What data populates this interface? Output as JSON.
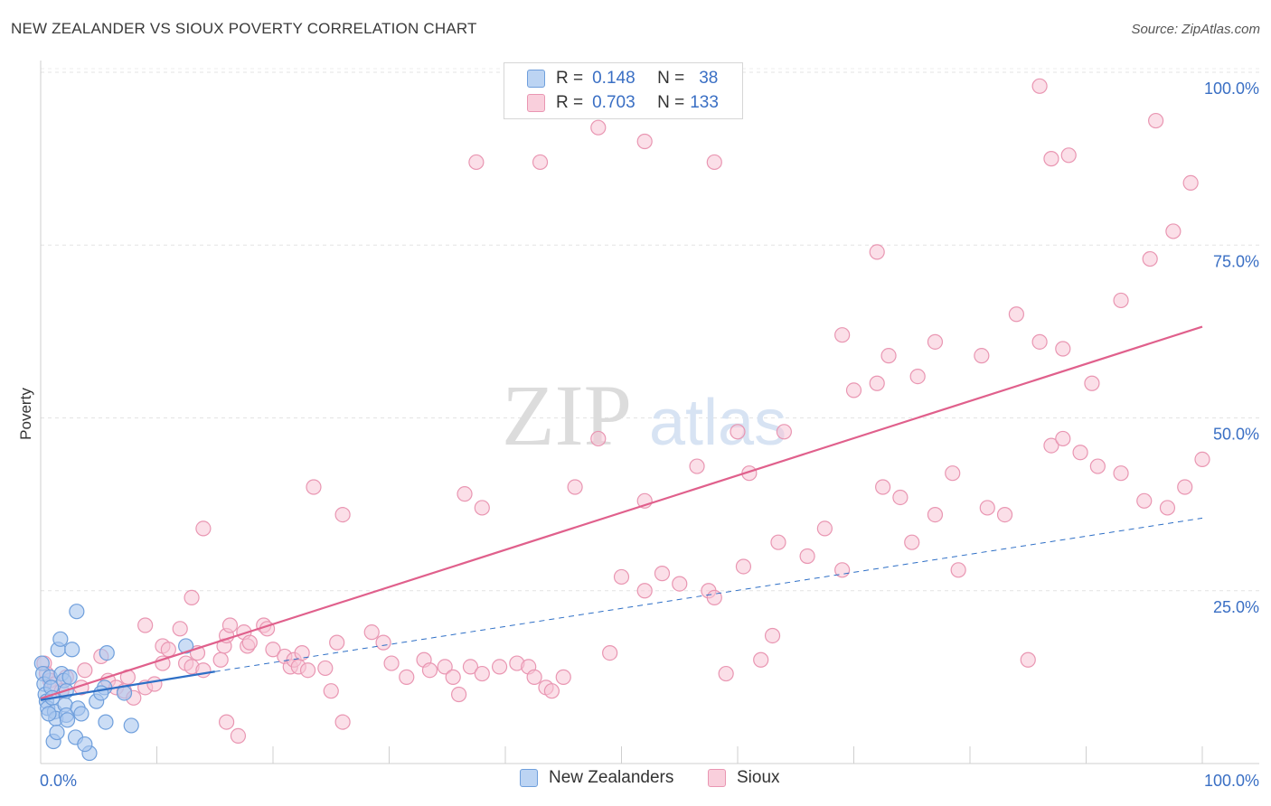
{
  "header": {
    "title": "NEW ZEALANDER VS SIOUX POVERTY CORRELATION CHART",
    "source": "Source: ZipAtlas.com"
  },
  "legend": {
    "series1": {
      "r_label": "R =",
      "r_value": "0.148",
      "n_label": "N =",
      "n_value": "38"
    },
    "series2": {
      "r_label": "R =",
      "r_value": "0.703",
      "n_label": "N =",
      "n_value": "133"
    }
  },
  "bottom_legend": {
    "series1": "New Zealanders",
    "series2": "Sioux"
  },
  "watermark": {
    "zip": "ZIP",
    "atlas": "atlas"
  },
  "colors": {
    "blue_fill": "#a9c6ee",
    "blue_stroke": "#6f9fdc",
    "blue_line": "#2e6fc6",
    "pink_fill": "#f7c5d5",
    "pink_stroke": "#e996b2",
    "pink_line": "#e0608c",
    "tick_text": "#3a6fc4",
    "grid": "#e3e3e3"
  },
  "chart_data": {
    "type": "scatter",
    "title": "NEW ZEALANDER VS SIOUX POVERTY CORRELATION CHART",
    "xlabel": "",
    "ylabel": "Poverty",
    "xlim": [
      0,
      100
    ],
    "ylim": [
      0,
      100
    ],
    "x_tick_labels": [
      "0.0%",
      "100.0%"
    ],
    "y_ticks": [
      25,
      50,
      75,
      100
    ],
    "y_tick_labels": [
      "25.0%",
      "50.0%",
      "75.0%",
      "100.0%"
    ],
    "series": [
      {
        "name": "New Zealanders",
        "R": 0.148,
        "N": 38,
        "trend": {
          "x0": 0,
          "y0": 9.2,
          "x1": 15,
          "y1": 13.3,
          "dashed_to_x": 100,
          "dashed_to_y": 35.5
        },
        "points": [
          [
            0.1,
            14.5
          ],
          [
            0.2,
            13
          ],
          [
            0.3,
            11.5
          ],
          [
            0.4,
            10
          ],
          [
            0.5,
            9
          ],
          [
            0.6,
            8
          ],
          [
            0.8,
            12.5
          ],
          [
            0.9,
            11
          ],
          [
            1,
            9.5
          ],
          [
            1.2,
            7.5
          ],
          [
            1.3,
            6.5
          ],
          [
            1.5,
            16.5
          ],
          [
            1.7,
            18
          ],
          [
            1.8,
            13
          ],
          [
            2,
            12
          ],
          [
            2.1,
            8.5
          ],
          [
            2.2,
            7
          ],
          [
            2.3,
            6.3
          ],
          [
            2.5,
            12.5
          ],
          [
            2.7,
            16.5
          ],
          [
            2.2,
            10.5
          ],
          [
            3,
            3.8
          ],
          [
            3.2,
            8
          ],
          [
            3.5,
            7.2
          ],
          [
            1.1,
            3.2
          ],
          [
            1.4,
            4.5
          ],
          [
            0.7,
            7.2
          ],
          [
            4.2,
            1.5
          ],
          [
            3.8,
            2.8
          ],
          [
            4.8,
            9
          ],
          [
            3.1,
            22
          ],
          [
            5.5,
            11
          ],
          [
            5.7,
            16
          ],
          [
            5.6,
            6
          ],
          [
            5.2,
            10.2
          ],
          [
            7.2,
            10.2
          ],
          [
            7.8,
            5.5
          ],
          [
            12.5,
            17
          ]
        ]
      },
      {
        "name": "Sioux",
        "R": 0.703,
        "N": 133,
        "trend": {
          "x0": 0,
          "y0": 9.4,
          "x1": 100,
          "y1": 63.2
        },
        "points": [
          [
            0.3,
            14.5
          ],
          [
            0.5,
            13
          ],
          [
            0.8,
            12
          ],
          [
            1.2,
            11.5
          ],
          [
            1.8,
            10.5
          ],
          [
            2.2,
            12.5
          ],
          [
            3.5,
            11
          ],
          [
            3.8,
            13.5
          ],
          [
            5.2,
            15.5
          ],
          [
            5.8,
            12
          ],
          [
            6.5,
            11
          ],
          [
            7.2,
            10.5
          ],
          [
            7.5,
            12.5
          ],
          [
            8,
            9.5
          ],
          [
            9,
            11
          ],
          [
            9.8,
            11.5
          ],
          [
            10.5,
            14.5
          ],
          [
            10.5,
            17
          ],
          [
            11,
            16.5
          ],
          [
            12.5,
            14.5
          ],
          [
            13,
            14
          ],
          [
            13.5,
            16
          ],
          [
            12,
            19.5
          ],
          [
            14,
            13.5
          ],
          [
            15.5,
            15
          ],
          [
            15.8,
            17
          ],
          [
            16,
            18.5
          ],
          [
            16.3,
            20
          ],
          [
            17.5,
            19
          ],
          [
            17.8,
            17
          ],
          [
            18,
            17.5
          ],
          [
            19.2,
            20
          ],
          [
            19.5,
            19.5
          ],
          [
            20,
            16.5
          ],
          [
            21,
            15.5
          ],
          [
            21.5,
            14
          ],
          [
            21.8,
            15
          ],
          [
            22.2,
            14
          ],
          [
            22.5,
            16
          ],
          [
            23,
            13.5
          ],
          [
            24.5,
            13.8
          ],
          [
            25.5,
            17.5
          ],
          [
            25,
            10.5
          ],
          [
            28.5,
            19
          ],
          [
            29.5,
            17.5
          ],
          [
            30.2,
            14.5
          ],
          [
            31.5,
            12.5
          ],
          [
            33,
            15
          ],
          [
            33.5,
            13.5
          ],
          [
            34.8,
            14
          ],
          [
            35.5,
            12.5
          ],
          [
            36,
            10
          ],
          [
            37,
            14
          ],
          [
            38,
            13
          ],
          [
            39.5,
            14
          ],
          [
            41,
            14.5
          ],
          [
            42,
            14
          ],
          [
            42.5,
            12.5
          ],
          [
            43.5,
            11
          ],
          [
            44,
            10.5
          ],
          [
            45,
            12.5
          ],
          [
            49,
            16
          ],
          [
            50,
            27
          ],
          [
            52,
            25
          ],
          [
            53.5,
            27.5
          ],
          [
            55,
            26
          ],
          [
            57.5,
            25
          ],
          [
            58,
            24
          ],
          [
            59,
            13
          ],
          [
            60.5,
            28.5
          ],
          [
            62,
            15
          ],
          [
            63,
            18.5
          ],
          [
            66,
            30
          ],
          [
            67.5,
            34
          ],
          [
            69,
            28
          ],
          [
            72.5,
            40
          ],
          [
            74,
            38.5
          ],
          [
            75,
            32
          ],
          [
            77,
            36
          ],
          [
            78.5,
            42
          ],
          [
            79,
            28
          ],
          [
            81.5,
            37
          ],
          [
            83,
            36
          ],
          [
            85,
            15
          ],
          [
            87,
            46
          ],
          [
            88,
            47
          ],
          [
            89.5,
            45
          ],
          [
            91,
            43
          ],
          [
            93,
            42
          ],
          [
            95,
            38
          ],
          [
            97,
            37
          ],
          [
            98.5,
            40
          ],
          [
            100,
            44
          ],
          [
            61,
            42
          ],
          [
            63.5,
            32
          ],
          [
            46,
            40
          ],
          [
            52,
            38
          ],
          [
            56.5,
            43
          ],
          [
            60,
            48
          ],
          [
            70,
            54
          ],
          [
            72,
            55
          ],
          [
            75.5,
            56
          ],
          [
            48,
            47
          ],
          [
            36.5,
            39
          ],
          [
            38,
            37
          ],
          [
            26,
            36
          ],
          [
            23.5,
            40
          ],
          [
            64,
            48
          ],
          [
            69,
            62
          ],
          [
            73,
            59
          ],
          [
            77,
            61
          ],
          [
            81,
            59
          ],
          [
            84,
            65
          ],
          [
            86,
            61
          ],
          [
            88,
            60
          ],
          [
            90.5,
            55
          ],
          [
            93,
            67
          ],
          [
            95.5,
            73
          ],
          [
            97.5,
            77
          ],
          [
            99,
            84
          ],
          [
            96,
            93
          ],
          [
            88.5,
            88
          ],
          [
            87,
            87.5
          ],
          [
            86,
            98
          ],
          [
            72,
            74
          ],
          [
            58,
            87
          ],
          [
            52,
            90
          ],
          [
            48,
            92
          ],
          [
            37.5,
            87
          ],
          [
            43,
            87
          ],
          [
            14,
            34
          ],
          [
            13,
            24
          ],
          [
            16,
            6
          ],
          [
            17,
            4
          ],
          [
            26,
            6
          ],
          [
            9,
            20
          ]
        ]
      }
    ]
  }
}
